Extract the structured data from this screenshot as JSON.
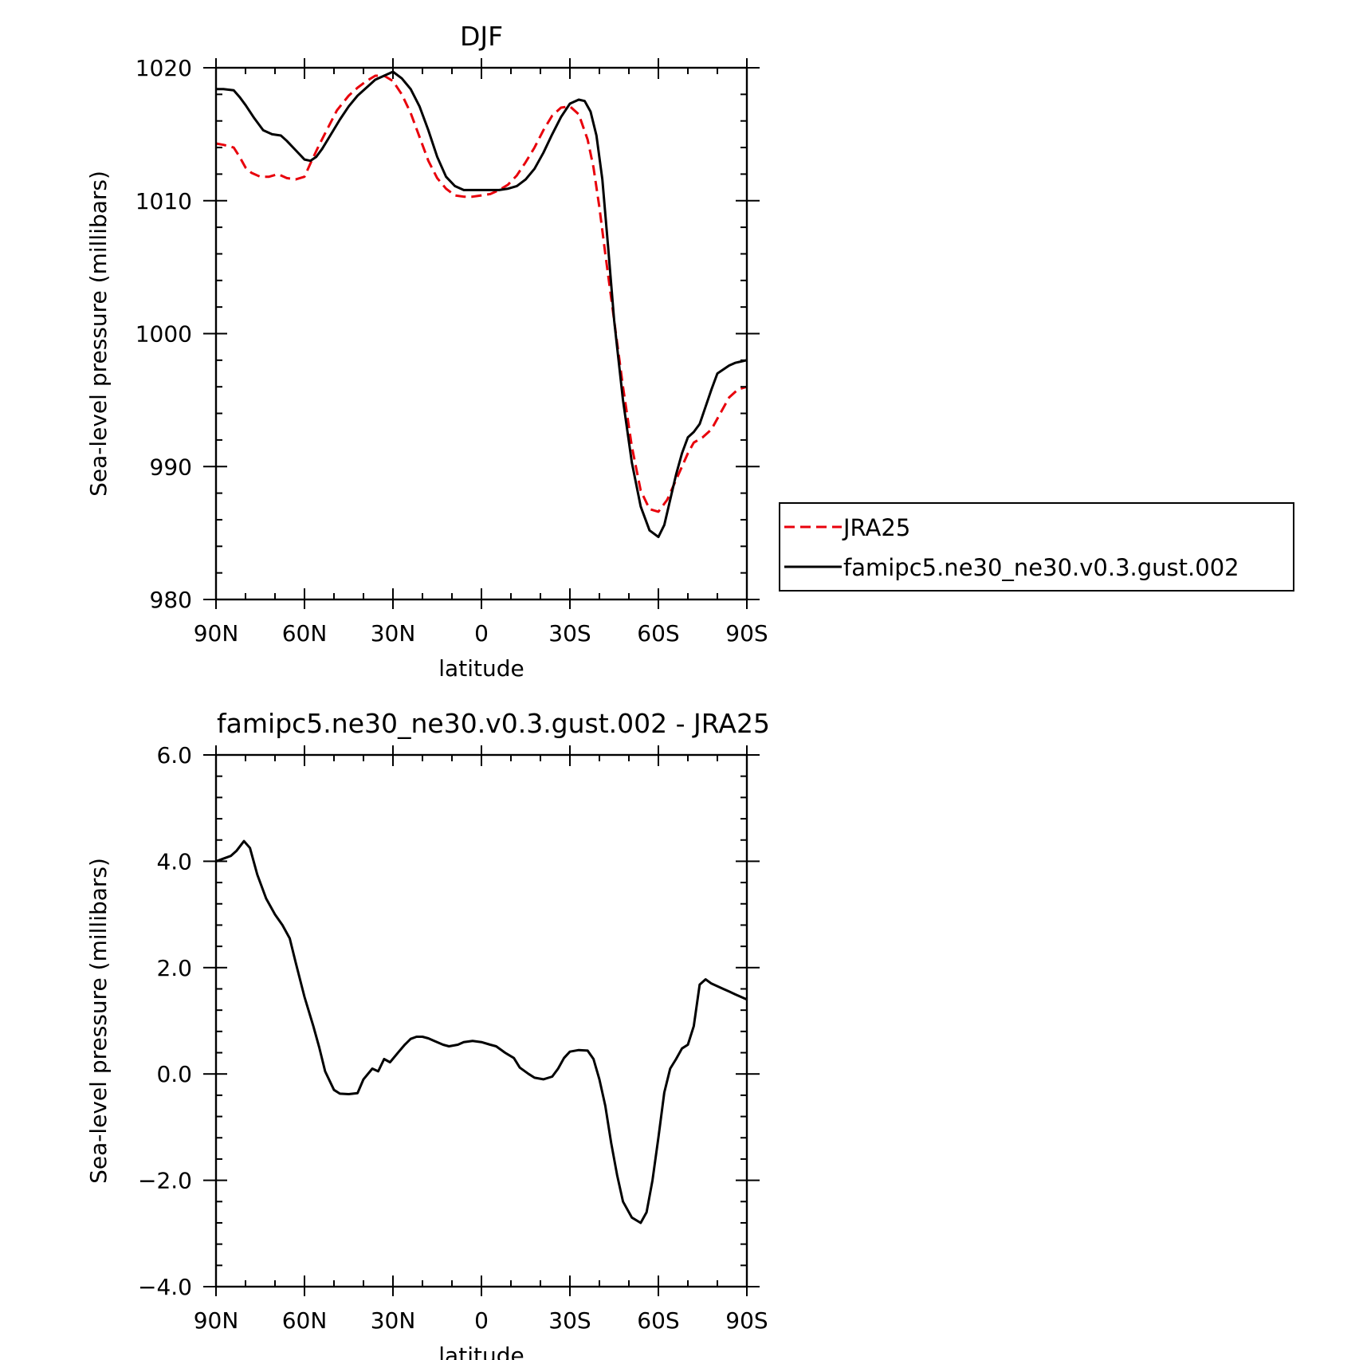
{
  "chart_data": [
    {
      "type": "line",
      "title": "DJF",
      "xlabel": "latitude",
      "ylabel": "Sea-level pressure (millibars)",
      "xlim": [
        90,
        -90
      ],
      "ylim": [
        980,
        1020
      ],
      "xticks": [
        {
          "value": 90,
          "label": "90N"
        },
        {
          "value": 60,
          "label": "60N"
        },
        {
          "value": 30,
          "label": "30N"
        },
        {
          "value": 0,
          "label": "0"
        },
        {
          "value": -30,
          "label": "30S"
        },
        {
          "value": -60,
          "label": "60S"
        },
        {
          "value": -90,
          "label": "90S"
        }
      ],
      "yticks": [
        {
          "value": 1020,
          "label": "1020"
        },
        {
          "value": 1010,
          "label": "1010"
        },
        {
          "value": 1000,
          "label": "1000"
        },
        {
          "value": 990,
          "label": "990"
        },
        {
          "value": 980,
          "label": "980"
        }
      ],
      "series": [
        {
          "name": "JRA25",
          "color": "#e8000b",
          "dash": "dashed",
          "x": [
            90,
            87.5,
            84,
            82,
            80,
            78,
            75,
            72,
            69,
            66,
            63,
            60,
            58,
            55,
            52,
            49,
            45,
            42,
            39,
            36,
            33,
            30,
            27,
            24,
            21,
            18,
            15,
            12,
            9,
            6,
            3,
            0,
            -3,
            -6,
            -9,
            -12,
            -15,
            -18,
            -21,
            -24,
            -27,
            -30,
            -33,
            -36,
            -38,
            -40,
            -42,
            -45,
            -48,
            -51,
            -54,
            -57,
            -60,
            -63,
            -66,
            -68,
            -70,
            -72,
            -75,
            -78,
            -81,
            -84,
            -87,
            -90
          ],
          "y": [
            1014.3,
            1014.2,
            1014.0,
            1013.3,
            1012.5,
            1012.1,
            1011.8,
            1011.8,
            1012.0,
            1011.7,
            1011.6,
            1011.8,
            1012.8,
            1014.2,
            1015.5,
            1016.8,
            1017.9,
            1018.5,
            1019.0,
            1019.4,
            1019.4,
            1019.0,
            1018.0,
            1016.6,
            1014.8,
            1013.0,
            1011.7,
            1010.9,
            1010.4,
            1010.3,
            1010.3,
            1010.4,
            1010.5,
            1010.8,
            1011.2,
            1011.9,
            1012.9,
            1014.0,
            1015.3,
            1016.4,
            1017.0,
            1017.1,
            1016.5,
            1014.6,
            1012.5,
            1009.5,
            1006.0,
            1001.0,
            996.0,
            991.5,
            988.2,
            986.8,
            986.6,
            987.5,
            989.0,
            990.0,
            991.0,
            991.8,
            992.2,
            992.8,
            994.0,
            995.2,
            995.8,
            996.0
          ]
        },
        {
          "name": "famipc5.ne30_ne30.v0.3.gust.002",
          "color": "#000000",
          "dash": "solid",
          "x": [
            90,
            87.5,
            84,
            82,
            80,
            77,
            74,
            71,
            68,
            66,
            63,
            60,
            58,
            56,
            54,
            51,
            48,
            45,
            42,
            39,
            36,
            33,
            30,
            27,
            24,
            21,
            18,
            15,
            12,
            9,
            6,
            3,
            0,
            -3,
            -6,
            -9,
            -12,
            -15,
            -18,
            -21,
            -24,
            -27,
            -30,
            -33,
            -35,
            -37,
            -39,
            -41,
            -43,
            -45,
            -48,
            -51,
            -54,
            -57,
            -60,
            -62,
            -64,
            -66,
            -68,
            -70,
            -72,
            -74,
            -76,
            -78,
            -80,
            -82,
            -84,
            -86,
            -88,
            -90
          ],
          "y": [
            1018.4,
            1018.4,
            1018.3,
            1017.8,
            1017.2,
            1016.2,
            1015.3,
            1015.0,
            1014.9,
            1014.5,
            1013.8,
            1013.1,
            1013.0,
            1013.3,
            1013.9,
            1015.0,
            1016.1,
            1017.1,
            1017.9,
            1018.5,
            1019.1,
            1019.4,
            1019.7,
            1019.2,
            1018.4,
            1017.1,
            1015.3,
            1013.3,
            1011.8,
            1011.1,
            1010.8,
            1010.8,
            1010.8,
            1010.8,
            1010.8,
            1010.9,
            1011.1,
            1011.6,
            1012.4,
            1013.6,
            1015.0,
            1016.3,
            1017.3,
            1017.6,
            1017.5,
            1016.7,
            1014.9,
            1011.6,
            1006.4,
            1001.0,
            995.0,
            990.3,
            987.0,
            985.2,
            984.7,
            985.6,
            987.5,
            989.4,
            991.0,
            992.2,
            992.6,
            993.2,
            994.5,
            995.8,
            997.0,
            997.3,
            997.6,
            997.8,
            997.9,
            998.0
          ]
        }
      ],
      "legend": {
        "placement": "right",
        "entries": [
          "JRA25",
          "famipc5.ne30_ne30.v0.3.gust.002"
        ]
      }
    },
    {
      "type": "line",
      "title": "famipc5.ne30_ne30.v0.3.gust.002 - JRA25",
      "xlabel": "latitude",
      "ylabel": "Sea-level pressure (millibars)",
      "xlim": [
        90,
        -90
      ],
      "ylim": [
        -4.0,
        6.0
      ],
      "xticks": [
        {
          "value": 90,
          "label": "90N"
        },
        {
          "value": 60,
          "label": "60N"
        },
        {
          "value": 30,
          "label": "30N"
        },
        {
          "value": 0,
          "label": "0"
        },
        {
          "value": -30,
          "label": "30S"
        },
        {
          "value": -60,
          "label": "60S"
        },
        {
          "value": -90,
          "label": "90S"
        }
      ],
      "yticks": [
        {
          "value": 6.0,
          "label": "6.0"
        },
        {
          "value": 4.0,
          "label": "4.0"
        },
        {
          "value": 2.0,
          "label": "2.0"
        },
        {
          "value": 0.0,
          "label": "0.0"
        },
        {
          "value": -2.0,
          "label": "−2.0"
        },
        {
          "value": -4.0,
          "label": "−4.0"
        }
      ],
      "series": [
        {
          "color": "#000000",
          "dash": "solid",
          "x": [
            90,
            87.5,
            85,
            83,
            80.5,
            78.5,
            76,
            73,
            70,
            67.5,
            65,
            63,
            60,
            57,
            55,
            53,
            50,
            48,
            45,
            42,
            40,
            37,
            35,
            33,
            31,
            28,
            26,
            24,
            22,
            20,
            18,
            16,
            13,
            11,
            8,
            6,
            3,
            0,
            -3,
            -5,
            -8,
            -11,
            -13,
            -16,
            -18,
            -21,
            -24,
            -26,
            -28,
            -30,
            -33,
            -36,
            -38,
            -40,
            -42,
            -44,
            -46,
            -48,
            -51,
            -54,
            -56,
            -58,
            -60,
            -62,
            -64,
            -66,
            -68,
            -70,
            -72,
            -74,
            -76,
            -78,
            -80,
            -82,
            -84,
            -86,
            -88,
            -90
          ],
          "y": [
            4.0,
            4.05,
            4.1,
            4.2,
            4.38,
            4.25,
            3.75,
            3.3,
            3.0,
            2.8,
            2.55,
            2.1,
            1.45,
            0.9,
            0.5,
            0.05,
            -0.3,
            -0.37,
            -0.38,
            -0.36,
            -0.1,
            0.1,
            0.05,
            0.28,
            0.22,
            0.42,
            0.55,
            0.66,
            0.7,
            0.7,
            0.67,
            0.62,
            0.55,
            0.52,
            0.55,
            0.6,
            0.62,
            0.6,
            0.55,
            0.52,
            0.4,
            0.3,
            0.12,
            0.0,
            -0.07,
            -0.1,
            -0.05,
            0.1,
            0.3,
            0.42,
            0.45,
            0.44,
            0.28,
            -0.1,
            -0.6,
            -1.3,
            -1.9,
            -2.4,
            -2.7,
            -2.8,
            -2.6,
            -2.0,
            -1.2,
            -0.35,
            0.1,
            0.28,
            0.48,
            0.55,
            0.9,
            1.68,
            1.78,
            1.7,
            1.65,
            1.6,
            1.55,
            1.5,
            1.45,
            1.4
          ]
        }
      ]
    }
  ]
}
